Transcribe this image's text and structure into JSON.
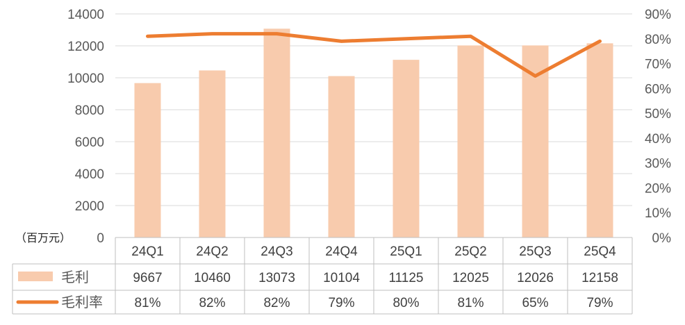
{
  "chart_data": {
    "type": "bar",
    "categories": [
      "24Q1",
      "24Q2",
      "24Q3",
      "24Q4",
      "25Q1",
      "25Q2",
      "25Q3",
      "25Q4"
    ],
    "series": [
      {
        "name": "毛利",
        "type": "bar",
        "axis": "left",
        "values": [
          9667,
          10460,
          13073,
          10104,
          11125,
          12025,
          12026,
          12158
        ],
        "color": "#F8CBAD"
      },
      {
        "name": "毛利率",
        "type": "line",
        "axis": "right",
        "values": [
          0.81,
          0.82,
          0.82,
          0.79,
          0.8,
          0.81,
          0.65,
          0.79
        ],
        "color": "#ED7D31"
      }
    ],
    "rate_labels": [
      "81%",
      "82%",
      "82%",
      "79%",
      "80%",
      "81%",
      "65%",
      "79%"
    ],
    "y_left": {
      "min": 0,
      "max": 14000,
      "step": 2000,
      "ticks": [
        "0",
        "2000",
        "4000",
        "6000",
        "8000",
        "10000",
        "12000",
        "14000"
      ]
    },
    "y_right": {
      "min": 0,
      "max": 0.9,
      "step": 0.1,
      "ticks": [
        "0%",
        "10%",
        "20%",
        "30%",
        "40%",
        "50%",
        "60%",
        "70%",
        "80%",
        "90%"
      ]
    },
    "unit_label": "（百万元）",
    "grid": true,
    "legend": "data-table"
  },
  "colors": {
    "grid": "#D9D9D9",
    "table_border": "#BFBFBF"
  }
}
